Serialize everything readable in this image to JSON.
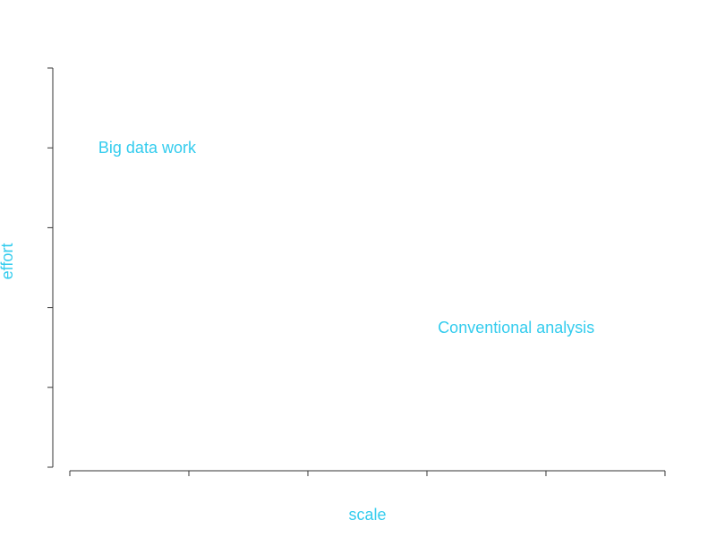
{
  "chart_data": {
    "type": "scatter",
    "title": "",
    "xlabel": "scale",
    "ylabel": "effort",
    "xlim": [
      0,
      5
    ],
    "ylim": [
      0,
      5
    ],
    "x_ticks": [
      0,
      1,
      2,
      3,
      4,
      5
    ],
    "y_ticks": [
      0,
      1,
      2,
      3,
      4,
      5
    ],
    "tick_labels_visible": false,
    "grid": false,
    "points": [
      {
        "label": "Big data work",
        "x": 0.65,
        "y": 4
      },
      {
        "label": "Conventional analysis",
        "x": 3.75,
        "y": 1.75
      }
    ]
  },
  "colors": {
    "text": "#33ccee",
    "axis": "#333333",
    "background": "#ffffff"
  }
}
